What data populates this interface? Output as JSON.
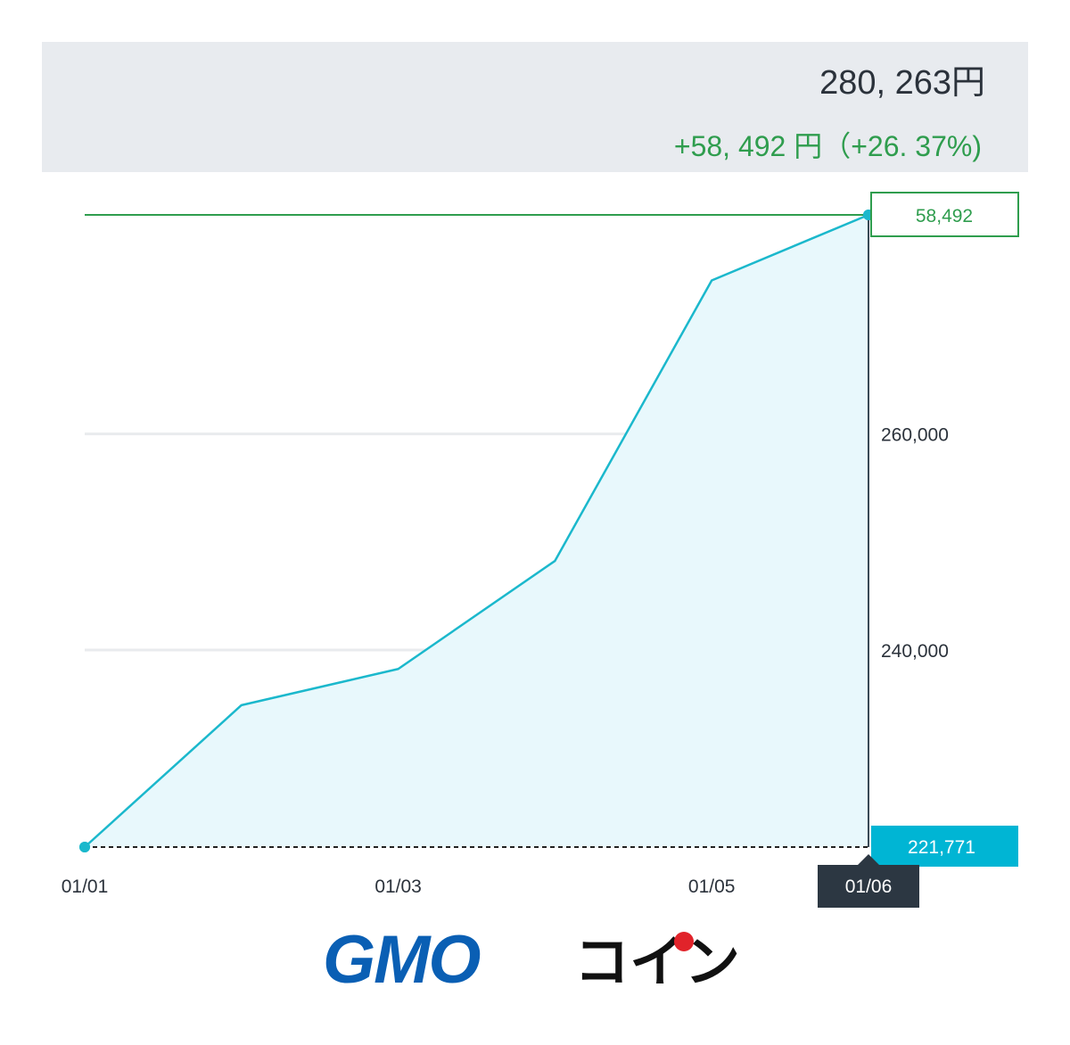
{
  "header": {
    "total": "280, 263円",
    "change": "+58, 492 円（+26. 37%)"
  },
  "colors": {
    "line": "#1bb8cc",
    "fill": "#e8f8fc",
    "positive": "#2f9d4e",
    "baseline_box": "#00b5d4",
    "date_box": "#2c3742",
    "grid": "#e9ebee"
  },
  "chart_data": {
    "type": "area",
    "x": [
      "01/01",
      "01/02",
      "01/03",
      "01/04",
      "01/05",
      "01/06"
    ],
    "values": [
      221771,
      234900,
      238250,
      248250,
      274200,
      280263
    ],
    "ylim": [
      221771,
      280263
    ],
    "yticks": [
      240000,
      260000
    ],
    "ytick_labels": [
      "240,000",
      "260,000"
    ],
    "xtick_labels": [
      "01/01",
      "01/03",
      "01/05"
    ],
    "current_value_label": "58,492",
    "baseline_label": "221,771",
    "crosshair_date": "01/06"
  },
  "logo": {
    "text_gmo": "GMO",
    "text_coin": "コイン"
  }
}
